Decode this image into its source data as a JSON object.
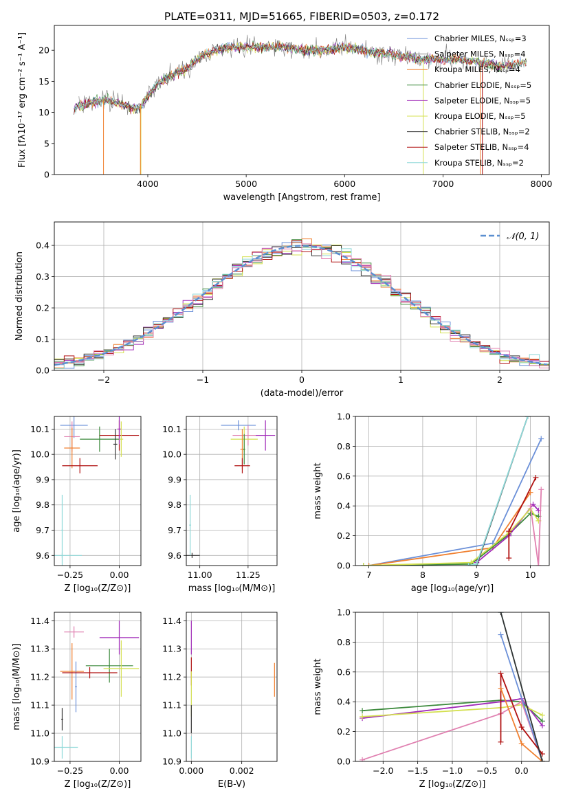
{
  "title": "PLATE=0311, MJD=51665, FIBERID=0503, z=0.172",
  "colors": [
    "#6a8fd8",
    "#f08030",
    "#3d8a3d",
    "#a02ab8",
    "#d4e050",
    "#333333",
    "#b01010",
    "#8fd8d8",
    "#e080b0",
    "#888888"
  ],
  "chart_data": [
    {
      "type": "line",
      "id": "spectrum",
      "title": "PLATE=0311, MJD=51665, FIBERID=0503, z=0.172",
      "xlabel": "wavelength [Angstrom, rest frame]",
      "ylabel": "Flux [fλ10⁻¹⁷ erg cm⁻² s⁻¹ A⁻¹]",
      "xlim": [
        3050,
        8080
      ],
      "ylim": [
        0,
        24
      ],
      "xticks": [
        4000,
        5000,
        6000,
        7000,
        8000
      ],
      "yticks": [
        0,
        5,
        10,
        15,
        20
      ],
      "legend_position": "upper-right",
      "series": [
        {
          "name": "Chabrier MILES, Nₛₛₚ=3",
          "color": "#6a8fd8"
        },
        {
          "name": "Salpeter MILES, Nₛₛₚ=4",
          "color": "#888888"
        },
        {
          "name": "Kroupa MILES, Nₛₛₚ=4",
          "color": "#f08030"
        },
        {
          "name": "Chabrier ELODIE, Nₛₛₚ=5",
          "color": "#3d8a3d"
        },
        {
          "name": "Salpeter ELODIE, Nₛₛₚ=5",
          "color": "#a02ab8"
        },
        {
          "name": "Kroupa ELODIE, Nₛₛₚ=5",
          "color": "#d4e050"
        },
        {
          "name": "Chabrier STELIB, Nₛₛₚ=2",
          "color": "#333333"
        },
        {
          "name": "Salpeter STELIB, Nₛₛₚ=4",
          "color": "#b01010"
        },
        {
          "name": "Kroupa STELIB, Nₛₛₚ=2",
          "color": "#8fd8d8"
        }
      ],
      "data_envelope": {
        "x": [
          3250,
          3400,
          3550,
          3700,
          3800,
          3900,
          4000,
          4100,
          4200,
          4300,
          4400,
          4500,
          4600,
          4700,
          4800,
          5000,
          5200,
          5400,
          5600,
          5800,
          6000,
          6200,
          6400,
          6600,
          6800,
          7000,
          7200,
          7400,
          7600,
          7850
        ],
        "y": [
          10.5,
          11.5,
          12.0,
          11.5,
          11.0,
          10.5,
          12.5,
          14.5,
          15.5,
          16.5,
          17.0,
          18.5,
          19.5,
          20.0,
          20.5,
          20.5,
          20.5,
          20.5,
          20.0,
          20.0,
          20.5,
          20.0,
          19.5,
          19.0,
          18.5,
          18.5,
          18.5,
          18.0,
          17.5,
          18.0
        ]
      }
    },
    {
      "type": "step",
      "id": "residuals",
      "xlabel": "(data-model)/error",
      "ylabel": "Normed distribution",
      "xlim": [
        -2.5,
        2.5
      ],
      "ylim": [
        0,
        0.475
      ],
      "xticks": [
        -2,
        -1,
        0,
        1,
        2
      ],
      "yticks": [
        0.0,
        0.1,
        0.2,
        0.3,
        0.4
      ],
      "grid": true,
      "legend_position": "upper-right",
      "reference": {
        "name": "𝒩(0, 1)",
        "mean": 0,
        "sigma": 1,
        "color": "#5b8fd0"
      },
      "bin_width": 0.1
    },
    {
      "type": "errorbar",
      "id": "age-vs-Z",
      "xlabel": "Z [log₁₀(Z/Z⊙)]",
      "ylabel": "age  [log₁₀(age/yr)]",
      "xlim": [
        -0.33,
        0.11
      ],
      "ylim": [
        9.56,
        10.15
      ],
      "xticks": [
        -0.25,
        0.0
      ],
      "yticks": [
        9.6,
        9.7,
        9.8,
        9.9,
        10.0,
        10.1
      ],
      "grid": true,
      "points": [
        {
          "x": -0.23,
          "y": 10.115,
          "xerr": 0.07,
          "yerr": 0.05,
          "color": "#6a8fd8"
        },
        {
          "x": -0.24,
          "y": 10.07,
          "xerr": 0.04,
          "yerr": 0.06,
          "color": "#e080b0"
        },
        {
          "x": -0.24,
          "y": 10.025,
          "xerr": 0.04,
          "yerr": 0.08,
          "color": "#f08030"
        },
        {
          "x": -0.1,
          "y": 10.06,
          "xerr": 0.1,
          "yerr": 0.05,
          "color": "#3d8a3d"
        },
        {
          "x": 0.0,
          "y": 10.075,
          "xerr": 0.1,
          "yerr": 0.06,
          "color": "#b01010"
        },
        {
          "x": 0.0,
          "y": 10.1,
          "xerr": 0.01,
          "yerr": 0.06,
          "color": "#a02ab8"
        },
        {
          "x": 0.01,
          "y": 10.06,
          "xerr": 0.01,
          "yerr": 0.07,
          "color": "#d4e050"
        },
        {
          "x": -0.02,
          "y": 10.04,
          "xerr": 0.01,
          "yerr": 0.06,
          "color": "#333333"
        },
        {
          "x": -0.2,
          "y": 9.955,
          "xerr": 0.09,
          "yerr": 0.03,
          "color": "#b01010"
        },
        {
          "x": -0.29,
          "y": 9.6,
          "xerr": 0.1,
          "yerr": 0.01,
          "color": "#8fd8d8"
        },
        {
          "x": -0.29,
          "y": 9.7,
          "xerr": 0.005,
          "yerr": 0.14,
          "color": "#8fd8d8"
        }
      ]
    },
    {
      "type": "errorbar",
      "id": "age-vs-mass",
      "xlabel": "mass [log₁₀(M/M⊙)]",
      "xlim": [
        10.93,
        11.4
      ],
      "ylim": [
        9.56,
        10.15
      ],
      "xticks": [
        11.0,
        11.25
      ],
      "yticks": [
        9.6,
        9.7,
        9.8,
        9.9,
        10.0,
        10.1
      ],
      "grid": true,
      "points": [
        {
          "x": 11.2,
          "y": 10.115,
          "xerr": 0.09,
          "yerr": 0.02,
          "color": "#6a8fd8"
        },
        {
          "x": 11.25,
          "y": 10.075,
          "xerr": 0.08,
          "yerr": 0.04,
          "color": "#e080b0"
        },
        {
          "x": 11.34,
          "y": 10.075,
          "xerr": 0.05,
          "yerr": 0.06,
          "color": "#a02ab8"
        },
        {
          "x": 11.23,
          "y": 10.06,
          "xerr": 0.07,
          "yerr": 0.05,
          "color": "#d4e050"
        },
        {
          "x": 11.22,
          "y": 10.02,
          "xerr": 0.01,
          "yerr": 0.08,
          "color": "#f08030"
        },
        {
          "x": 11.23,
          "y": 10.02,
          "xerr": 0.005,
          "yerr": 0.06,
          "color": "#3d8a3d"
        },
        {
          "x": 11.22,
          "y": 9.955,
          "xerr": 0.04,
          "yerr": 0.03,
          "color": "#b01010"
        },
        {
          "x": 10.96,
          "y": 9.6,
          "xerr": 0.04,
          "yerr": 0.01,
          "color": "#333333"
        },
        {
          "x": 10.95,
          "y": 9.72,
          "xerr": 0.005,
          "yerr": 0.12,
          "color": "#8fd8d8"
        }
      ]
    },
    {
      "type": "line",
      "id": "weight-vs-age",
      "xlabel": "age  [log₁₀(age/yr)]",
      "ylabel": "mass weight",
      "xlim": [
        6.75,
        10.35
      ],
      "ylim": [
        0,
        1
      ],
      "xticks": [
        7,
        8,
        9,
        10
      ],
      "yticks": [
        0.0,
        0.2,
        0.4,
        0.6,
        0.8,
        1.0
      ],
      "grid": true,
      "series": [
        {
          "color": "#6a8fd8",
          "x": [
            7.0,
            9.3,
            10.2
          ],
          "y": [
            0.0,
            0.15,
            0.85
          ]
        },
        {
          "color": "#f08030",
          "x": [
            7.0,
            9.3,
            10.0
          ],
          "y": [
            0.0,
            0.12,
            0.49
          ]
        },
        {
          "color": "#3d8a3d",
          "x": [
            6.9,
            8.9,
            9.6,
            10.0,
            10.15
          ],
          "y": [
            0.0,
            0.01,
            0.21,
            0.35,
            0.33
          ]
        },
        {
          "color": "#a02ab8",
          "x": [
            9.0,
            9.6,
            10.05,
            10.15
          ],
          "y": [
            0.02,
            0.2,
            0.41,
            0.37
          ]
        },
        {
          "color": "#d4e050",
          "x": [
            6.9,
            8.9,
            9.6,
            10.0,
            10.15
          ],
          "y": [
            0.0,
            0.02,
            0.22,
            0.38,
            0.3
          ]
        },
        {
          "color": "#333333",
          "x": [
            9.0,
            9.95
          ],
          "y": [
            0.0,
            1.0
          ]
        },
        {
          "color": "#b01010",
          "x": [
            9.6,
            9.6,
            10.1
          ],
          "y": [
            0.05,
            0.23,
            0.59
          ]
        },
        {
          "color": "#8fd8d8",
          "x": [
            8.85,
            9.0,
            9.95
          ],
          "y": [
            0.0,
            0.01,
            1.0
          ]
        },
        {
          "color": "#e080b0",
          "x": [
            10.0,
            10.15,
            10.2
          ],
          "y": [
            0.4,
            0.0,
            0.51
          ]
        }
      ]
    },
    {
      "type": "errorbar",
      "id": "mass-vs-Z",
      "xlabel": "Z [log₁₀(Z/Z⊙)]",
      "ylabel": "mass [log₁₀(M/M⊙)]",
      "xlim": [
        -0.33,
        0.11
      ],
      "ylim": [
        10.9,
        11.43
      ],
      "xticks": [
        -0.25,
        0.0
      ],
      "yticks": [
        10.9,
        11.0,
        11.1,
        11.2,
        11.3,
        11.4
      ],
      "grid": true,
      "points": [
        {
          "x": -0.23,
          "y": 11.36,
          "xerr": 0.05,
          "yerr": 0.02,
          "color": "#e080b0"
        },
        {
          "x": 0.0,
          "y": 11.34,
          "xerr": 0.1,
          "yerr": 0.06,
          "color": "#a02ab8"
        },
        {
          "x": -0.05,
          "y": 11.24,
          "xerr": 0.12,
          "yerr": 0.06,
          "color": "#3d8a3d"
        },
        {
          "x": 0.01,
          "y": 11.23,
          "xerr": 0.09,
          "yerr": 0.1,
          "color": "#d4e050"
        },
        {
          "x": -0.24,
          "y": 11.22,
          "xerr": 0.06,
          "yerr": 0.1,
          "color": "#f08030"
        },
        {
          "x": -0.22,
          "y": 11.165,
          "xerr": 0.005,
          "yerr": 0.09,
          "color": "#6a8fd8"
        },
        {
          "x": -0.15,
          "y": 11.215,
          "xerr": 0.14,
          "yerr": 0.02,
          "color": "#b01010"
        },
        {
          "x": -0.29,
          "y": 11.05,
          "xerr": 0.005,
          "yerr": 0.04,
          "color": "#333333"
        },
        {
          "x": -0.29,
          "y": 10.95,
          "xerr": 0.08,
          "yerr": 0.04,
          "color": "#8fd8d8"
        }
      ]
    },
    {
      "type": "errorbar",
      "id": "mass-vs-EBV",
      "xlabel": "E(B-V)",
      "xlim": [
        -0.0002,
        0.0034
      ],
      "ylim": [
        10.9,
        11.43
      ],
      "xticks": [
        0.0,
        0.002
      ],
      "yticks": [
        10.9,
        11.0,
        11.1,
        11.2,
        11.3,
        11.4
      ],
      "grid": true,
      "points": [
        {
          "x": 0.0,
          "y": 11.34,
          "xerr": 0,
          "yerr": 0.06,
          "color": "#a02ab8"
        },
        {
          "x": 0.0,
          "y": 11.22,
          "xerr": 0,
          "yerr": 0.05,
          "color": "#b01010"
        },
        {
          "x": 0.0,
          "y": 11.14,
          "xerr": 0,
          "yerr": 0.08,
          "color": "#d4e050"
        },
        {
          "x": 0.0,
          "y": 11.05,
          "xerr": 0,
          "yerr": 0.05,
          "color": "#333333"
        },
        {
          "x": 0.0,
          "y": 10.95,
          "xerr": 0,
          "yerr": 0.04,
          "color": "#8fd8d8"
        },
        {
          "x": 0.0033,
          "y": 11.19,
          "xerr": 0,
          "yerr": 0.06,
          "color": "#f08030"
        }
      ]
    },
    {
      "type": "line",
      "id": "weight-vs-Z",
      "xlabel": "Z [log₁₀(Z/Z⊙)]",
      "ylabel": "mass weight",
      "xlim": [
        -2.4,
        0.4
      ],
      "ylim": [
        0,
        1
      ],
      "xticks": [
        -2.0,
        -1.5,
        -1.0,
        -0.5,
        0.0
      ],
      "yticks": [
        0.0,
        0.2,
        0.4,
        0.6,
        0.8,
        1.0
      ],
      "grid": true,
      "series": [
        {
          "color": "#3d8a3d",
          "x": [
            -2.3,
            -0.3,
            0.0,
            0.3
          ],
          "y": [
            0.34,
            0.41,
            0.4,
            0.27
          ]
        },
        {
          "color": "#a02ab8",
          "x": [
            -2.3,
            -0.3,
            0.0,
            0.3
          ],
          "y": [
            0.29,
            0.4,
            0.42,
            0.24
          ]
        },
        {
          "color": "#d4e050",
          "x": [
            -2.3,
            -0.3,
            0.0,
            0.3
          ],
          "y": [
            0.3,
            0.36,
            0.38,
            0.31
          ]
        },
        {
          "color": "#e080b0",
          "x": [
            -2.3,
            -0.3,
            0.0,
            0.3
          ],
          "y": [
            0.01,
            0.32,
            0.4,
            0.0
          ]
        },
        {
          "color": "#6a8fd8",
          "x": [
            -0.3,
            0.3
          ],
          "y": [
            0.85,
            0.0
          ]
        },
        {
          "color": "#8fd8d8",
          "x": [
            -0.3,
            0.3
          ],
          "y": [
            1.0,
            0.0
          ]
        },
        {
          "color": "#b01010",
          "x": [
            -0.3,
            -0.3,
            0.0,
            0.3
          ],
          "y": [
            0.13,
            0.59,
            0.23,
            0.05
          ]
        },
        {
          "color": "#f08030",
          "x": [
            -0.3,
            0.0,
            0.3
          ],
          "y": [
            0.49,
            0.12,
            0.0
          ]
        },
        {
          "color": "#333333",
          "x": [
            -0.3,
            0.3
          ],
          "y": [
            1.0,
            0.0
          ]
        }
      ]
    }
  ]
}
